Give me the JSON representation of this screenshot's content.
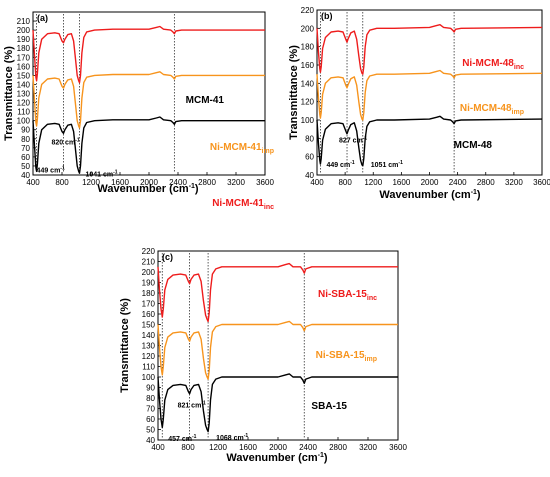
{
  "chart_data": [
    {
      "type": "line",
      "panel_label": "(a)",
      "xlabel": "Wavenumber (cm",
      "xlabel_sup": "-1",
      "xlabel_end": ")",
      "ylabel": "Transmittance (%)",
      "xlim": [
        400,
        3600
      ],
      "ylim": [
        40,
        220
      ],
      "xticks": [
        400,
        800,
        1200,
        1600,
        2000,
        2400,
        2800,
        3200,
        3600
      ],
      "yticks": [
        40,
        50,
        60,
        70,
        80,
        90,
        100,
        110,
        120,
        130,
        140,
        150,
        160,
        170,
        180,
        190,
        200,
        210
      ],
      "dotted_lines_x": [
        449,
        820,
        1041,
        2350
      ],
      "series": [
        {
          "name": "Ni-MCM-41",
          "name_sub": "inc",
          "color": "#ee1c1c",
          "offset": 100
        },
        {
          "name": "Ni-MCM-41",
          "name_sub": "imp",
          "color": "#f7941d",
          "offset": 50
        },
        {
          "name": "MCM-41",
          "name_sub": "",
          "color": "#000000",
          "offset": 0
        }
      ],
      "base_curve": [
        [
          400,
          100
        ],
        [
          420,
          72
        ],
        [
          440,
          48
        ],
        [
          449,
          44
        ],
        [
          460,
          52
        ],
        [
          480,
          75
        ],
        [
          520,
          90
        ],
        [
          600,
          96
        ],
        [
          700,
          97
        ],
        [
          760,
          96
        ],
        [
          800,
          88
        ],
        [
          820,
          86
        ],
        [
          840,
          90
        ],
        [
          880,
          95
        ],
        [
          930,
          96
        ],
        [
          960,
          88
        ],
        [
          990,
          65
        ],
        [
          1010,
          50
        ],
        [
          1030,
          44
        ],
        [
          1041,
          42
        ],
        [
          1055,
          50
        ],
        [
          1075,
          75
        ],
        [
          1100,
          92
        ],
        [
          1140,
          98
        ],
        [
          1250,
          100
        ],
        [
          1500,
          101
        ],
        [
          2000,
          101
        ],
        [
          2100,
          103
        ],
        [
          2150,
          104
        ],
        [
          2200,
          101
        ],
        [
          2300,
          100
        ],
        [
          2330,
          98
        ],
        [
          2350,
          96
        ],
        [
          2370,
          99
        ],
        [
          2450,
          100
        ],
        [
          3600,
          100
        ]
      ],
      "peak_labels": [
        {
          "text": "449 cm",
          "sup": "-1",
          "x": 449,
          "y": 47
        },
        {
          "text": "820 cm",
          "sup": "-1",
          "x": 820,
          "y": 78
        },
        {
          "text": "1041 cm",
          "sup": "-1",
          "x": 1041,
          "y": 43
        }
      ]
    },
    {
      "type": "line",
      "panel_label": "(b)",
      "xlabel": "Wavenumber (cm",
      "xlabel_sup": "-1",
      "xlabel_end": ")",
      "ylabel": "Transmittance (%)",
      "xlim": [
        400,
        3600
      ],
      "ylim": [
        40,
        220
      ],
      "xticks": [
        400,
        800,
        1200,
        1600,
        2000,
        2400,
        2800,
        3200,
        3600
      ],
      "yticks": [
        40,
        60,
        80,
        100,
        120,
        140,
        160,
        180,
        200,
        220
      ],
      "dotted_lines_x": [
        449,
        827,
        1051,
        2350
      ],
      "series": [
        {
          "name": "Ni-MCM-48",
          "name_sub": "inc",
          "color": "#ee1c1c",
          "offset": 100
        },
        {
          "name": "Ni-MCM-48",
          "name_sub": "imp",
          "color": "#f7941d",
          "offset": 50
        },
        {
          "name": "MCM-48",
          "name_sub": "",
          "color": "#000000",
          "offset": 0
        }
      ],
      "base_curve": [
        [
          400,
          100
        ],
        [
          420,
          75
        ],
        [
          440,
          56
        ],
        [
          449,
          52
        ],
        [
          460,
          58
        ],
        [
          480,
          78
        ],
        [
          520,
          90
        ],
        [
          600,
          96
        ],
        [
          700,
          97
        ],
        [
          770,
          96
        ],
        [
          810,
          88
        ],
        [
          827,
          85
        ],
        [
          845,
          89
        ],
        [
          880,
          95
        ],
        [
          930,
          97
        ],
        [
          965,
          88
        ],
        [
          995,
          70
        ],
        [
          1020,
          56
        ],
        [
          1040,
          51
        ],
        [
          1051,
          50
        ],
        [
          1065,
          58
        ],
        [
          1085,
          80
        ],
        [
          1110,
          93
        ],
        [
          1150,
          98
        ],
        [
          1250,
          100
        ],
        [
          1500,
          100
        ],
        [
          2000,
          101
        ],
        [
          2100,
          103
        ],
        [
          2150,
          104
        ],
        [
          2200,
          101
        ],
        [
          2300,
          100
        ],
        [
          2330,
          98
        ],
        [
          2350,
          96
        ],
        [
          2370,
          99
        ],
        [
          2450,
          100
        ],
        [
          3600,
          101
        ]
      ],
      "peak_labels": [
        {
          "text": "449 cm",
          "sup": "-1",
          "x": 449,
          "y": 53
        },
        {
          "text": "827 cm",
          "sup": "-1",
          "x": 827,
          "y": 80
        },
        {
          "text": "1051 cm",
          "sup": "-1",
          "x": 1051,
          "y": 53
        }
      ]
    },
    {
      "type": "line",
      "panel_label": "(c)",
      "xlabel": "Wavenumber (cm",
      "xlabel_sup": "-1",
      "xlabel_end": ")",
      "ylabel": "Transmittance (%)",
      "xlim": [
        400,
        3600
      ],
      "ylim": [
        40,
        220
      ],
      "xticks": [
        400,
        800,
        1200,
        1600,
        2000,
        2400,
        2800,
        3200,
        3600
      ],
      "yticks": [
        40,
        50,
        60,
        70,
        80,
        90,
        100,
        110,
        120,
        130,
        140,
        150,
        160,
        170,
        180,
        190,
        200,
        210,
        220
      ],
      "dotted_lines_x": [
        457,
        821,
        1068,
        2350
      ],
      "series": [
        {
          "name": "Ni-SBA-15",
          "name_sub": "inc",
          "color": "#ee1c1c",
          "offset": 105
        },
        {
          "name": "Ni-SBA-15",
          "name_sub": "imp",
          "color": "#f7941d",
          "offset": 50
        },
        {
          "name": "SBA-15",
          "name_sub": "",
          "color": "#000000",
          "offset": 0
        }
      ],
      "base_curve": [
        [
          400,
          100
        ],
        [
          420,
          78
        ],
        [
          440,
          60
        ],
        [
          457,
          52
        ],
        [
          470,
          60
        ],
        [
          490,
          78
        ],
        [
          530,
          88
        ],
        [
          600,
          92
        ],
        [
          700,
          93
        ],
        [
          770,
          92
        ],
        [
          805,
          86
        ],
        [
          821,
          84
        ],
        [
          840,
          88
        ],
        [
          880,
          92
        ],
        [
          940,
          93
        ],
        [
          975,
          86
        ],
        [
          1005,
          68
        ],
        [
          1035,
          54
        ],
        [
          1055,
          50
        ],
        [
          1068,
          48
        ],
        [
          1082,
          56
        ],
        [
          1100,
          78
        ],
        [
          1125,
          93
        ],
        [
          1170,
          98
        ],
        [
          1250,
          100
        ],
        [
          1500,
          100
        ],
        [
          2000,
          100
        ],
        [
          2100,
          102
        ],
        [
          2150,
          103
        ],
        [
          2200,
          100
        ],
        [
          2300,
          100
        ],
        [
          2330,
          97
        ],
        [
          2350,
          94
        ],
        [
          2370,
          98
        ],
        [
          2450,
          100
        ],
        [
          3600,
          100
        ]
      ],
      "peak_labels": [
        {
          "text": "457 cm",
          "sup": "-1",
          "x": 457,
          "y": 43
        },
        {
          "text": "821 cm",
          "sup": "-1",
          "x": 821,
          "y": 75
        },
        {
          "text": "1068 cm",
          "sup": "-1",
          "x": 1068,
          "y": 44
        }
      ]
    }
  ]
}
